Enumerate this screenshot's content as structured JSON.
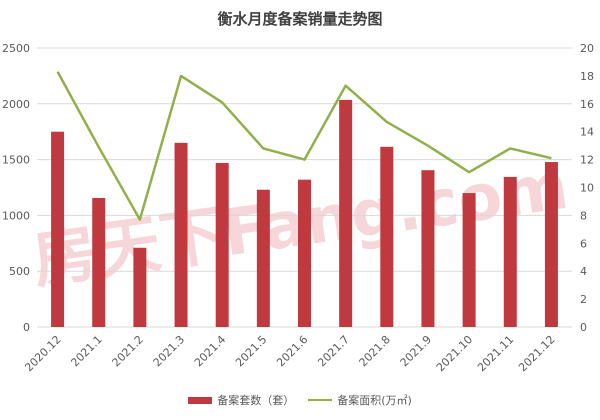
{
  "chart_data": {
    "type": "bar+line",
    "title": "衡水月度备案销量走势图",
    "categories": [
      "2020.12",
      "2021.1",
      "2021.2",
      "2021.3",
      "2021.4",
      "2021.5",
      "2021.6",
      "2021.7",
      "2021.8",
      "2021.9",
      "2021.10",
      "2021.11",
      "2021.12"
    ],
    "series": [
      {
        "name": "备案套数（套）",
        "type": "bar",
        "axis": "left",
        "color": "#c0393f",
        "values": [
          1750,
          1156,
          710,
          1650,
          1470,
          1230,
          1320,
          2035,
          1615,
          1405,
          1200,
          1345,
          1478
        ]
      },
      {
        "name": "备案面积(万㎡)",
        "type": "line",
        "axis": "right",
        "color": "#8fb04a",
        "values": [
          18.3,
          12.9,
          7.7,
          18.0,
          16.1,
          12.8,
          12.0,
          17.3,
          14.7,
          13.0,
          11.1,
          12.8,
          12.1
        ]
      }
    ],
    "y_left": {
      "ylim": [
        0,
        2500
      ],
      "ticks": [
        0,
        500,
        1000,
        1500,
        2000,
        2500
      ]
    },
    "y_right": {
      "ylim": [
        0,
        20
      ],
      "ticks": [
        0,
        2,
        4,
        6,
        8,
        10,
        12,
        14,
        16,
        18,
        20
      ]
    },
    "xlabel": "",
    "ylabel": "",
    "grid": true,
    "legend_position": "bottom",
    "watermark": "房天下Fang.com"
  },
  "colors": {
    "bar": "#c0393f",
    "line": "#8fb04a",
    "grid": "#d9d9d9",
    "axis_text": "#595959",
    "watermark": "#f6d6d8"
  }
}
